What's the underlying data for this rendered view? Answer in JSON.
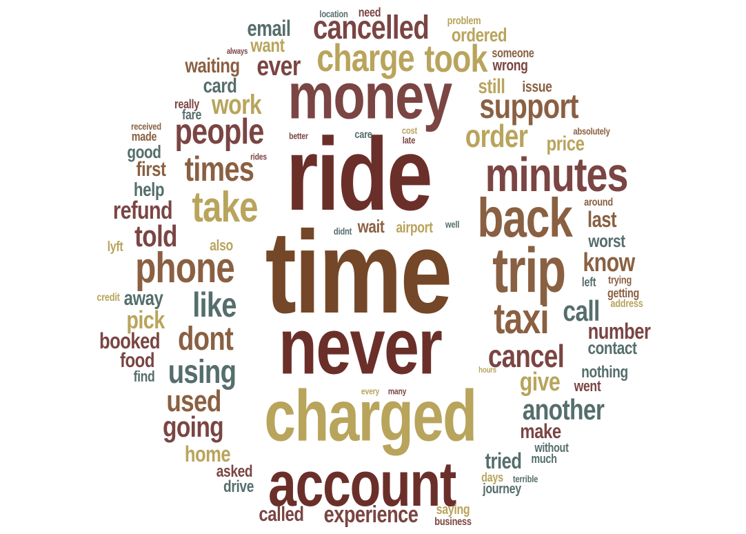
{
  "colors": {
    "maroon": "#6b2f2a",
    "rose": "#7a4543",
    "brown": "#8a6042",
    "rust": "#744728",
    "gold": "#b9a45c",
    "teal": "#556e6c"
  },
  "words": [
    {
      "text": "time",
      "color": "rust"
    },
    {
      "text": "ride",
      "color": "maroon"
    },
    {
      "text": "never",
      "color": "maroon"
    },
    {
      "text": "charged",
      "color": "gold"
    },
    {
      "text": "money",
      "color": "rose"
    },
    {
      "text": "account",
      "color": "maroon"
    },
    {
      "text": "trip",
      "color": "brown"
    },
    {
      "text": "minutes",
      "color": "rose"
    },
    {
      "text": "back",
      "color": "brown"
    },
    {
      "text": "phone",
      "color": "brown"
    },
    {
      "text": "charge",
      "color": "gold"
    },
    {
      "text": "took",
      "color": "gold"
    },
    {
      "text": "cancelled",
      "color": "rose"
    },
    {
      "text": "taxi",
      "color": "brown"
    },
    {
      "text": "take",
      "color": "gold"
    },
    {
      "text": "people",
      "color": "rose"
    },
    {
      "text": "times",
      "color": "brown"
    },
    {
      "text": "support",
      "color": "brown"
    },
    {
      "text": "cancel",
      "color": "rose"
    },
    {
      "text": "like",
      "color": "teal"
    },
    {
      "text": "dont",
      "color": "brown"
    },
    {
      "text": "using",
      "color": "teal"
    },
    {
      "text": "order",
      "color": "gold"
    },
    {
      "text": "told",
      "color": "rose"
    },
    {
      "text": "used",
      "color": "brown"
    },
    {
      "text": "going",
      "color": "rose"
    },
    {
      "text": "another",
      "color": "teal"
    },
    {
      "text": "call",
      "color": "teal"
    },
    {
      "text": "give",
      "color": "gold"
    },
    {
      "text": "work",
      "color": "gold"
    },
    {
      "text": "ever",
      "color": "rose"
    },
    {
      "text": "know",
      "color": "brown"
    },
    {
      "text": "experience",
      "color": "rose"
    },
    {
      "text": "refund",
      "color": "rose"
    },
    {
      "text": "email",
      "color": "teal"
    },
    {
      "text": "waiting",
      "color": "brown"
    },
    {
      "text": "number",
      "color": "rose"
    },
    {
      "text": "price",
      "color": "gold"
    },
    {
      "text": "home",
      "color": "gold"
    },
    {
      "text": "make",
      "color": "rose"
    },
    {
      "text": "called",
      "color": "rose"
    },
    {
      "text": "tried",
      "color": "teal"
    },
    {
      "text": "booked",
      "color": "rose"
    },
    {
      "text": "pick",
      "color": "gold"
    },
    {
      "text": "away",
      "color": "teal"
    },
    {
      "text": "card",
      "color": "teal"
    },
    {
      "text": "still",
      "color": "gold"
    },
    {
      "text": "ordered",
      "color": "gold"
    },
    {
      "text": "want",
      "color": "gold"
    },
    {
      "text": "last",
      "color": "brown"
    },
    {
      "text": "worst",
      "color": "teal"
    },
    {
      "text": "first",
      "color": "brown"
    },
    {
      "text": "help",
      "color": "teal"
    },
    {
      "text": "good",
      "color": "teal"
    },
    {
      "text": "wait",
      "color": "brown"
    },
    {
      "text": "airport",
      "color": "gold"
    },
    {
      "text": "food",
      "color": "rose"
    },
    {
      "text": "contact",
      "color": "teal"
    },
    {
      "text": "nothing",
      "color": "teal"
    },
    {
      "text": "went",
      "color": "rose"
    },
    {
      "text": "also",
      "color": "gold"
    },
    {
      "text": "asked",
      "color": "rose"
    },
    {
      "text": "drive",
      "color": "teal"
    },
    {
      "text": "wrong",
      "color": "rose"
    },
    {
      "text": "issue",
      "color": "brown"
    },
    {
      "text": "saying",
      "color": "gold"
    },
    {
      "text": "journey",
      "color": "teal"
    },
    {
      "text": "without",
      "color": "teal"
    },
    {
      "text": "much",
      "color": "teal"
    },
    {
      "text": "find",
      "color": "teal"
    },
    {
      "text": "days",
      "color": "gold"
    },
    {
      "text": "terrible",
      "color": "teal"
    },
    {
      "text": "need",
      "color": "rose"
    },
    {
      "text": "someone",
      "color": "brown"
    },
    {
      "text": "left",
      "color": "teal"
    },
    {
      "text": "trying",
      "color": "brown"
    },
    {
      "text": "getting",
      "color": "brown"
    },
    {
      "text": "address",
      "color": "gold"
    },
    {
      "text": "around",
      "color": "brown"
    },
    {
      "text": "absolutely",
      "color": "brown"
    },
    {
      "text": "lyft",
      "color": "gold"
    },
    {
      "text": "credit",
      "color": "gold"
    },
    {
      "text": "fare",
      "color": "teal"
    },
    {
      "text": "really",
      "color": "rose"
    },
    {
      "text": "made",
      "color": "brown"
    },
    {
      "text": "received",
      "color": "brown"
    },
    {
      "text": "business",
      "color": "rose"
    },
    {
      "text": "problem",
      "color": "gold"
    },
    {
      "text": "location",
      "color": "teal"
    },
    {
      "text": "always",
      "color": "rose"
    },
    {
      "text": "better",
      "color": "rose"
    },
    {
      "text": "care",
      "color": "teal"
    },
    {
      "text": "cost",
      "color": "gold"
    },
    {
      "text": "late",
      "color": "rose"
    },
    {
      "text": "rides",
      "color": "rose"
    },
    {
      "text": "didnt",
      "color": "teal"
    },
    {
      "text": "well",
      "color": "teal"
    },
    {
      "text": "every",
      "color": "gold"
    },
    {
      "text": "many",
      "color": "rose"
    },
    {
      "text": "hours",
      "color": "gold"
    }
  ]
}
